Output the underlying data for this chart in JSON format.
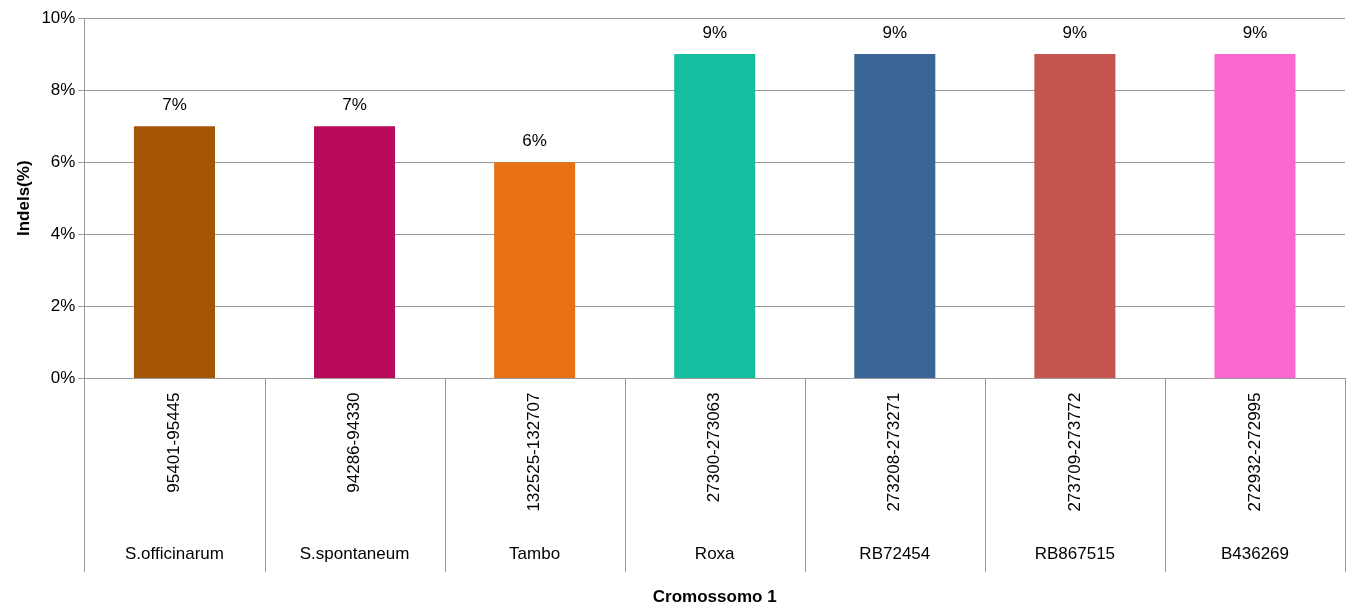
{
  "chart_data": {
    "type": "bar",
    "xlabel": "Cromossomo 1",
    "ylabel": "Indels(%)",
    "categories": [
      "95401-95445",
      "94286-94330",
      "132525-132707",
      "27300-273063",
      "273208-273271",
      "273709-273772",
      "272932-272995"
    ],
    "values": [
      7,
      7,
      6,
      9,
      9,
      9,
      9
    ],
    "colors": [
      "#a65506",
      "#b8095a",
      "#e87213",
      "#14bfa0",
      "#3b6596",
      "#c5544f",
      "#fb67cc"
    ],
    "value_labels": [
      "7%",
      "7%",
      "6%",
      "9%",
      "9%",
      "9%",
      "9%"
    ],
    "annotations": [
      "S.officinarum",
      "S.spontaneum",
      "Tambo",
      "Roxa",
      "RB72454",
      "RB867515",
      "B436269"
    ],
    "ylim": [
      0,
      10
    ],
    "yticks": [
      {
        "value": 0,
        "label": "0%"
      },
      {
        "value": 2,
        "label": "2%"
      },
      {
        "value": 4,
        "label": "4%"
      },
      {
        "value": 6,
        "label": "6%"
      },
      {
        "value": 8,
        "label": "8%"
      },
      {
        "value": 10,
        "label": "10%"
      }
    ],
    "grid": "y",
    "legend": false
  }
}
